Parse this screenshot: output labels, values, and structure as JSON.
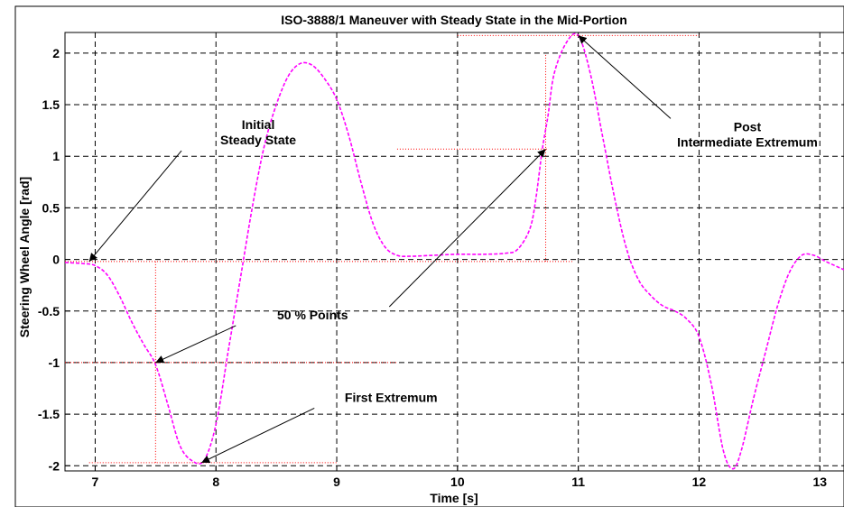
{
  "chart_data": {
    "type": "line",
    "title": "ISO-3888/1 Maneuver with Steady State in the Mid-Portion",
    "xlabel": "Time [s]",
    "ylabel": "Steering Wheel Angle [rad]",
    "xlim": [
      6.75,
      13.2
    ],
    "ylim": [
      -2.05,
      2.2
    ],
    "xticks": [
      7,
      8,
      9,
      10,
      11,
      12,
      13
    ],
    "yticks": [
      -2,
      -1.5,
      -1,
      -0.5,
      0,
      0.5,
      1,
      1.5,
      2
    ],
    "grid": true,
    "colors": {
      "series": "#ff00ff",
      "reference": "#ff0000",
      "grid": "#000000"
    },
    "series": [
      {
        "name": "",
        "x": [
          6.75,
          6.9,
          7.0,
          7.1,
          7.2,
          7.3,
          7.4,
          7.5,
          7.6,
          7.7,
          7.8,
          7.9,
          8.0,
          8.1,
          8.2,
          8.3,
          8.4,
          8.5,
          8.6,
          8.7,
          8.8,
          8.9,
          9.0,
          9.1,
          9.2,
          9.3,
          9.4,
          9.5,
          9.6,
          9.8,
          10.0,
          10.2,
          10.4,
          10.5,
          10.6,
          10.65,
          10.7,
          10.75,
          10.8,
          10.9,
          11.0,
          11.1,
          11.2,
          11.3,
          11.4,
          11.5,
          11.6,
          11.7,
          11.8,
          11.9,
          12.0,
          12.1,
          12.2,
          12.28,
          12.35,
          12.45,
          12.55,
          12.65,
          12.75,
          12.85,
          12.95,
          13.05,
          13.2
        ],
        "y": [
          -0.03,
          -0.04,
          -0.06,
          -0.15,
          -0.35,
          -0.6,
          -0.82,
          -1.02,
          -1.4,
          -1.8,
          -1.95,
          -1.95,
          -1.6,
          -0.9,
          -0.2,
          0.5,
          1.1,
          1.5,
          1.78,
          1.9,
          1.88,
          1.75,
          1.55,
          1.2,
          0.75,
          0.35,
          0.12,
          0.04,
          0.03,
          0.04,
          0.05,
          0.05,
          0.06,
          0.1,
          0.3,
          0.6,
          1.05,
          1.4,
          1.8,
          2.1,
          2.17,
          1.8,
          1.2,
          0.6,
          0.1,
          -0.2,
          -0.35,
          -0.45,
          -0.5,
          -0.58,
          -0.75,
          -1.2,
          -1.85,
          -2.03,
          -1.85,
          -1.35,
          -0.9,
          -0.45,
          -0.12,
          0.04,
          0.04,
          -0.02,
          -0.1
        ]
      }
    ],
    "reference_lines": [
      {
        "kind": "h",
        "y": -0.02,
        "x0": 6.75,
        "x1": 10.95
      },
      {
        "kind": "h",
        "y": -1.0,
        "x0": 6.75,
        "x1": 9.5
      },
      {
        "kind": "h",
        "y": -1.97,
        "x0": 6.95,
        "x1": 9.0
      },
      {
        "kind": "h",
        "y": 1.07,
        "x0": 9.5,
        "x1": 10.75
      },
      {
        "kind": "h",
        "y": 2.17,
        "x0": 10.0,
        "x1": 12.0
      },
      {
        "kind": "v",
        "x": 7.5,
        "y0": -1.97,
        "y1": -0.02
      },
      {
        "kind": "v",
        "x": 10.73,
        "y0": -0.02,
        "y1": 2.0
      }
    ],
    "annotations": [
      {
        "id": "initial",
        "lines": [
          "Initial",
          "Steady State"
        ],
        "text_at": [
          8.35,
          1.22
        ],
        "arrow_to": [
          6.95,
          -0.02
        ]
      },
      {
        "id": "fifty",
        "lines": [
          "50 % Points"
        ],
        "text_at": [
          8.8,
          -0.55
        ],
        "arrow_to": [
          7.5,
          -1.0
        ],
        "arrow_to2": [
          10.73,
          1.07
        ]
      },
      {
        "id": "first",
        "lines": [
          "First Extremum"
        ],
        "text_at": [
          9.45,
          -1.35
        ],
        "arrow_to": [
          7.88,
          -1.97
        ]
      },
      {
        "id": "post",
        "lines": [
          "Post",
          "Intermediate Extremum"
        ],
        "text_at": [
          12.4,
          1.2
        ],
        "arrow_to": [
          11.0,
          2.17
        ]
      }
    ]
  }
}
